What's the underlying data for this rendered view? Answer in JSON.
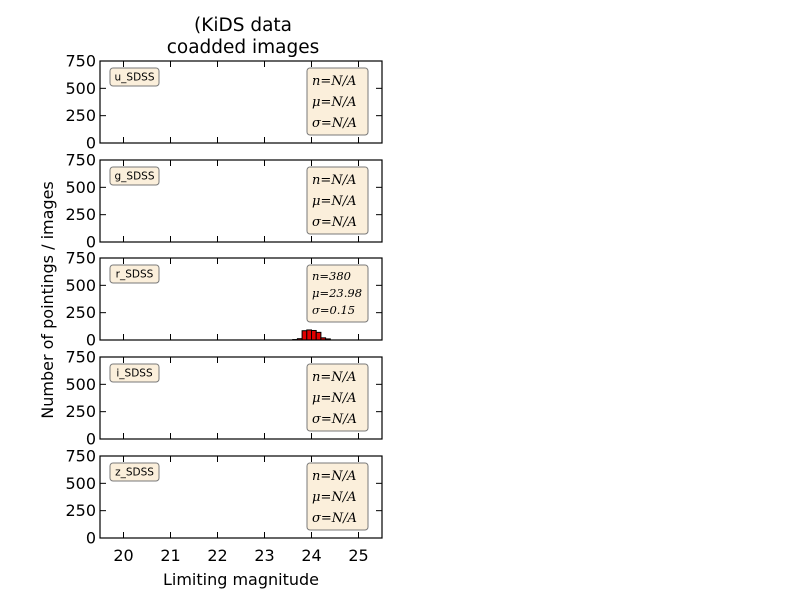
{
  "figure": {
    "title_line1": "(KiDS data",
    "title_line2": "coadded images",
    "xlabel": "Limiting magnitude",
    "ylabel": "Number of pointings / images"
  },
  "chart_data": {
    "type": "bar",
    "title": "(KiDS data coadded images",
    "xlabel": "Limiting magnitude",
    "ylabel": "Number of pointings / images",
    "xlim": [
      19.5,
      25.5
    ],
    "ylim": [
      0,
      750
    ],
    "x_ticks": [
      "20",
      "21",
      "22",
      "23",
      "24",
      "25"
    ],
    "y_ticks": [
      "0",
      "250",
      "500",
      "750"
    ],
    "grid": false,
    "bar_color": "#e00000",
    "label_box_color": "#fbefdb",
    "panels": [
      {
        "band": "u_SDSS",
        "n": "n=N/A",
        "mu": "μ=N/A",
        "sigma": "σ=N/A",
        "bins": []
      },
      {
        "band": "g_SDSS",
        "n": "n=N/A",
        "mu": "μ=N/A",
        "sigma": "σ=N/A",
        "bins": []
      },
      {
        "band": "r_SDSS",
        "n": "n=380",
        "mu": "μ=23.98",
        "sigma": "σ=0.15",
        "bins": [
          {
            "left": 23.6,
            "right": 23.7,
            "count": 4
          },
          {
            "left": 23.7,
            "right": 23.8,
            "count": 12
          },
          {
            "left": 23.8,
            "right": 23.9,
            "count": 85
          },
          {
            "left": 23.9,
            "right": 24.0,
            "count": 92
          },
          {
            "left": 24.0,
            "right": 24.1,
            "count": 87
          },
          {
            "left": 24.1,
            "right": 24.2,
            "count": 70
          },
          {
            "left": 24.2,
            "right": 24.3,
            "count": 20
          },
          {
            "left": 24.3,
            "right": 24.4,
            "count": 10
          }
        ]
      },
      {
        "band": "i_SDSS",
        "n": "n=N/A",
        "mu": "μ=N/A",
        "sigma": "σ=N/A",
        "bins": []
      },
      {
        "band": "z_SDSS",
        "n": "n=N/A",
        "mu": "μ=N/A",
        "sigma": "σ=N/A",
        "bins": []
      }
    ]
  }
}
